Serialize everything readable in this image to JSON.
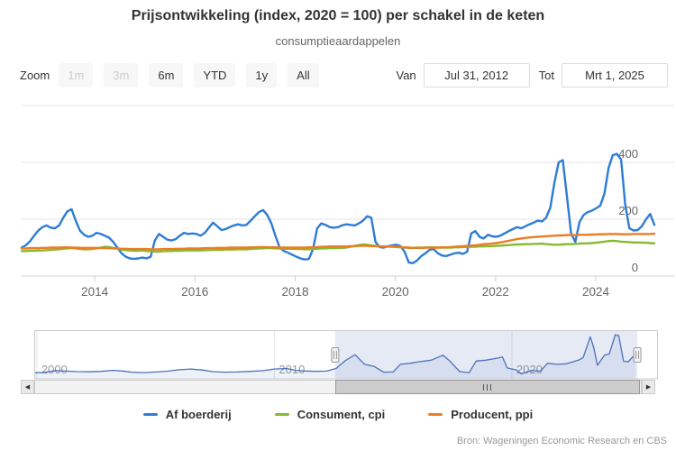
{
  "header": {
    "title": "Prijsontwikkeling (index, 2020 = 100) per schakel in de keten",
    "subtitle": "consumptieaardappelen"
  },
  "toolbar": {
    "zoom_label": "Zoom",
    "buttons": [
      {
        "label": "1m",
        "enabled": false
      },
      {
        "label": "3m",
        "enabled": false
      },
      {
        "label": "6m",
        "enabled": true
      },
      {
        "label": "YTD",
        "enabled": true
      },
      {
        "label": "1y",
        "enabled": true
      },
      {
        "label": "All",
        "enabled": true
      }
    ],
    "range": {
      "from_label": "Van",
      "from_value": "Jul 31, 2012",
      "to_label": "Tot",
      "to_value": "Mrt 1, 2025"
    }
  },
  "chart_data": {
    "type": "line",
    "title": "Prijsontwikkeling (index, 2020 = 100) per schakel in de keten",
    "subtitle": "consumptieaardappelen",
    "x_start": 2012.54,
    "x_end": 2025.17,
    "x_unit": "monthly",
    "x_ticks": [
      2014,
      2016,
      2018,
      2020,
      2022,
      2024
    ],
    "y_ticks": [
      0,
      200,
      400
    ],
    "y_tick_step": 200,
    "ylim": [
      0,
      620
    ],
    "grid": true,
    "legend_position": "bottom",
    "series": [
      {
        "name": "Af boerderij",
        "color": "#2e7cd6",
        "values": [
          100,
          108,
          122,
          142,
          160,
          172,
          178,
          170,
          168,
          178,
          205,
          228,
          235,
          195,
          160,
          145,
          138,
          142,
          152,
          148,
          142,
          135,
          120,
          100,
          80,
          68,
          62,
          60,
          62,
          65,
          62,
          68,
          125,
          148,
          138,
          128,
          125,
          130,
          142,
          152,
          148,
          150,
          148,
          142,
          152,
          170,
          188,
          175,
          162,
          165,
          172,
          178,
          182,
          178,
          180,
          195,
          210,
          225,
          232,
          215,
          185,
          140,
          100,
          88,
          82,
          75,
          68,
          62,
          58,
          60,
          95,
          168,
          185,
          180,
          172,
          170,
          172,
          178,
          182,
          180,
          178,
          185,
          195,
          210,
          205,
          120,
          102,
          100,
          105,
          108,
          110,
          105,
          85,
          48,
          45,
          55,
          70,
          80,
          92,
          95,
          80,
          72,
          70,
          75,
          80,
          82,
          78,
          85,
          150,
          158,
          138,
          132,
          145,
          140,
          138,
          142,
          150,
          158,
          165,
          172,
          168,
          175,
          182,
          188,
          195,
          192,
          205,
          240,
          330,
          400,
          408,
          280,
          150,
          120,
          190,
          215,
          225,
          230,
          238,
          248,
          290,
          380,
          425,
          430,
          410,
          250,
          168,
          160,
          162,
          175,
          200,
          218,
          180
        ]
      },
      {
        "name": "Consument, cpi",
        "color": "#87b932",
        "values": [
          88,
          88,
          89,
          89,
          90,
          90,
          91,
          92,
          93,
          94,
          96,
          97,
          98,
          97,
          95,
          94,
          94,
          95,
          97,
          100,
          103,
          102,
          99,
          96,
          93,
          91,
          90,
          89,
          89,
          90,
          88,
          87,
          86,
          86,
          87,
          88,
          88,
          89,
          89,
          90,
          90,
          90,
          90,
          90,
          91,
          91,
          92,
          92,
          92,
          93,
          93,
          93,
          94,
          94,
          94,
          95,
          96,
          97,
          97,
          98,
          98,
          97,
          97,
          96,
          96,
          96,
          95,
          95,
          94,
          94,
          95,
          96,
          97,
          97,
          98,
          98,
          99,
          99,
          100,
          103,
          106,
          109,
          111,
          110,
          108,
          106,
          105,
          104,
          103,
          103,
          102,
          101,
          100,
          99,
          99,
          100,
          100,
          100,
          101,
          101,
          100,
          100,
          100,
          100,
          101,
          101,
          102,
          102,
          103,
          103,
          104,
          104,
          105,
          105,
          106,
          107,
          108,
          109,
          110,
          111,
          111,
          112,
          112,
          113,
          113,
          114,
          112,
          111,
          110,
          110,
          111,
          112,
          112,
          113,
          114,
          115,
          115,
          116,
          117,
          119,
          121,
          123,
          124,
          123,
          121,
          120,
          119,
          118,
          118,
          117,
          117,
          116,
          115
        ]
      },
      {
        "name": "Producent, ppi",
        "color": "#eb7d23",
        "values": [
          97,
          97,
          98,
          98,
          98,
          99,
          99,
          100,
          100,
          100,
          101,
          101,
          100,
          100,
          99,
          99,
          99,
          99,
          99,
          99,
          98,
          98,
          97,
          97,
          96,
          96,
          95,
          95,
          95,
          95,
          95,
          94,
          94,
          94,
          95,
          95,
          95,
          96,
          96,
          96,
          97,
          97,
          97,
          97,
          98,
          98,
          98,
          99,
          99,
          99,
          100,
          100,
          100,
          100,
          100,
          101,
          101,
          102,
          102,
          102,
          101,
          101,
          100,
          100,
          100,
          100,
          100,
          100,
          100,
          101,
          101,
          102,
          103,
          103,
          104,
          104,
          104,
          104,
          104,
          105,
          105,
          106,
          106,
          106,
          105,
          105,
          104,
          104,
          104,
          104,
          103,
          102,
          101,
          100,
          99,
          99,
          99,
          100,
          100,
          100,
          100,
          101,
          101,
          102,
          103,
          104,
          105,
          106,
          107,
          108,
          110,
          112,
          113,
          114,
          116,
          118,
          121,
          124,
          127,
          130,
          132,
          134,
          136,
          137,
          138,
          139,
          140,
          141,
          142,
          143,
          143,
          144,
          144,
          144,
          145,
          145,
          145,
          146,
          146,
          147,
          147,
          148,
          148,
          148,
          147,
          147,
          147,
          148,
          148,
          148,
          148,
          148,
          149
        ]
      }
    ]
  },
  "navigator": {
    "x_start": 1999.89,
    "x_end": 2026.15,
    "x_ticks": [
      2000,
      2010,
      2020
    ],
    "selected_from": 2012.56,
    "selected_to": 2025.28,
    "line_color": "#4a72b8",
    "series": {
      "name": "Af boerderij (overzicht)",
      "x": [
        1999.9,
        2000.3,
        2000.8,
        2001.2,
        2001.7,
        2002.2,
        2002.7,
        2003.2,
        2003.6,
        2004.0,
        2004.5,
        2005.0,
        2005.5,
        2006.0,
        2006.5,
        2007.0,
        2007.4,
        2007.9,
        2008.4,
        2009.0,
        2009.5,
        2010.0,
        2010.5,
        2010.9,
        2011.3,
        2011.8,
        2012.2,
        2012.6,
        2013.0,
        2013.4,
        2013.8,
        2014.2,
        2014.6,
        2015.0,
        2015.3,
        2015.7,
        2016.1,
        2016.6,
        2017.1,
        2017.4,
        2017.8,
        2018.2,
        2018.5,
        2018.9,
        2019.4,
        2019.6,
        2019.8,
        2020.2,
        2020.4,
        2020.8,
        2021.2,
        2021.5,
        2021.9,
        2022.3,
        2022.8,
        2023.0,
        2023.3,
        2023.45,
        2023.6,
        2023.9,
        2024.1,
        2024.35,
        2024.5,
        2024.7,
        2024.9,
        2025.1,
        2025.2
      ],
      "values": [
        58,
        62,
        80,
        75,
        70,
        68,
        72,
        82,
        76,
        64,
        60,
        66,
        74,
        88,
        95,
        84,
        70,
        64,
        66,
        72,
        78,
        95,
        100,
        82,
        76,
        72,
        75,
        100,
        178,
        232,
        140,
        120,
        64,
        66,
        140,
        150,
        165,
        180,
        228,
        170,
        70,
        60,
        172,
        180,
        200,
        210,
        105,
        85,
        48,
        80,
        75,
        150,
        140,
        145,
        180,
        205,
        405,
        300,
        130,
        228,
        240,
        425,
        415,
        170,
        165,
        215,
        180
      ]
    }
  },
  "footer": {
    "source": "Bron: Wageningen Economic Research en CBS"
  }
}
